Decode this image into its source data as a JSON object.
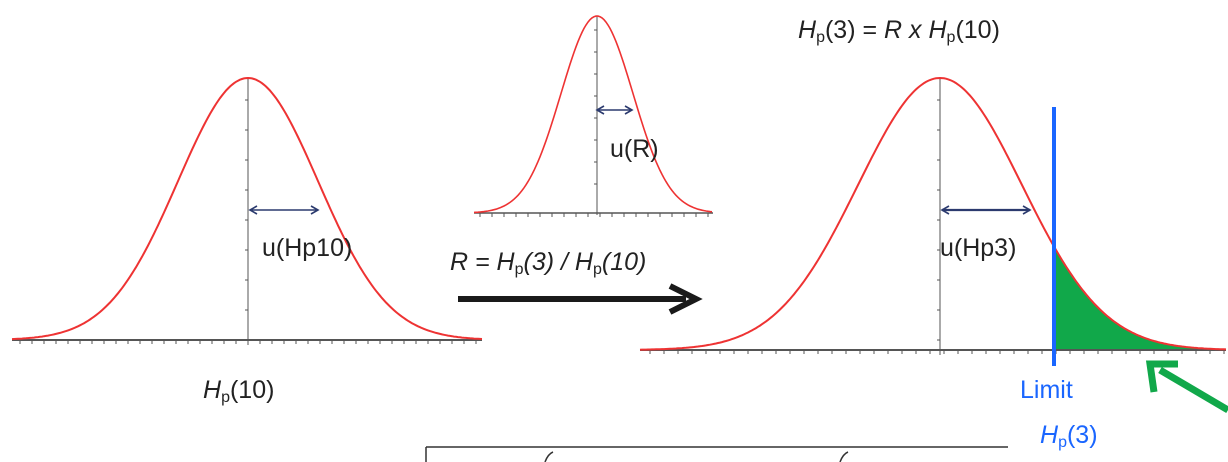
{
  "labels": {
    "u_hp10": "u(Hp10)",
    "u_r": "u(R)",
    "u_hp3": "u(Hp3)",
    "hp10_caption": {
      "sym": "H",
      "sub": "p",
      "rest": "(10)"
    },
    "ratio": {
      "lead": "R = ",
      "h1": "H",
      "sub1": "p",
      "arg1": "(3) / ",
      "h2": "H",
      "sub2": "p",
      "arg2": "(10)"
    },
    "relation": {
      "h1": "H",
      "sub1": "p",
      "mid": "(3) = ",
      "r": "R x ",
      "h2": "H",
      "sub2": "p",
      "tail": "(10)"
    },
    "limit": {
      "word": "Limit",
      "h": "H",
      "sub": "p",
      "arg": "(3)"
    }
  },
  "colors": {
    "curve": "#ee3333",
    "axis": "#555555",
    "arrow": "#2b3a6e",
    "limit_line": "#1a66ff",
    "tail_fill": "#11a84a",
    "pointer": "#11a84a",
    "big_arrow": "#1a1a1a"
  }
}
